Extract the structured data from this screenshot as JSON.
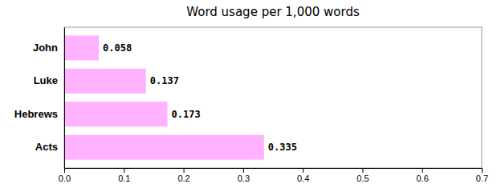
{
  "chart_data": {
    "type": "bar",
    "orientation": "horizontal",
    "title": "Word usage per 1,000 words",
    "categories": [
      "Acts",
      "Hebrews",
      "Luke",
      "John"
    ],
    "values": [
      0.335,
      0.173,
      0.137,
      0.058
    ],
    "color": "#ffb3ff",
    "xlim": [
      0.0,
      0.7
    ],
    "xticks": [
      {
        "value": 0.0,
        "label": "0.0"
      },
      0.1,
      0.2,
      0.3,
      0.4,
      0.5,
      0.6,
      0.7
    ],
    "data_labels": true,
    "grid": false
  }
}
